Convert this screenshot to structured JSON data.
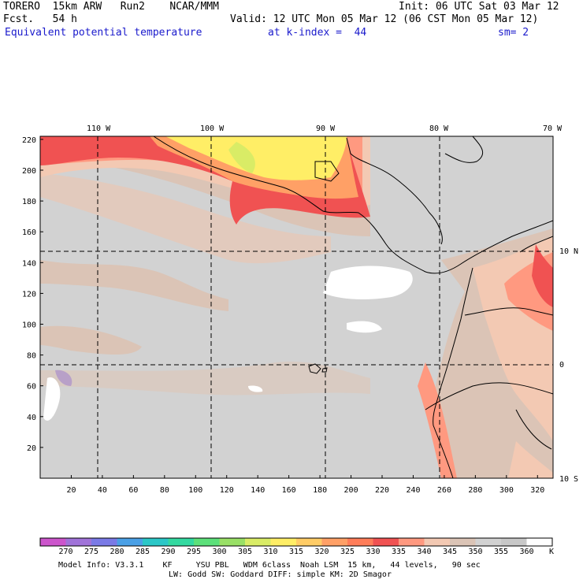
{
  "header": {
    "line1_left": "TORERO  15km ARW   Run2    NCAR/MMM",
    "line1_right": "Init: 06 UTC Sat 03 Mar 12",
    "line2_left": "Fcst.   54 h",
    "line2_right": "Valid: 12 UTC Mon 05 Mar 12 (06 CST Mon 05 Mar 12)",
    "field_name": "Equivalent potential temperature",
    "level": "at k-index =  44",
    "smoothing": "sm= 2"
  },
  "map": {
    "lon_labels": [
      "110 W",
      "100 W",
      "90 W",
      "80 W",
      "70 W"
    ],
    "lat_labels": [
      "10 N",
      "0",
      "10 S"
    ],
    "x_ticks": [
      "20",
      "40",
      "60",
      "80",
      "100",
      "120",
      "140",
      "160",
      "180",
      "200",
      "220",
      "240",
      "260",
      "280",
      "300",
      "320"
    ],
    "y_ticks": [
      "20",
      "40",
      "60",
      "80",
      "100",
      "120",
      "140",
      "160",
      "180",
      "200",
      "220"
    ]
  },
  "colorbar": {
    "labels": [
      "270",
      "275",
      "280",
      "285",
      "290",
      "295",
      "300",
      "305",
      "310",
      "315",
      "320",
      "325",
      "330",
      "335",
      "340",
      "345",
      "350",
      "355",
      "360"
    ],
    "unit": "K",
    "colors": [
      "#cc55cc",
      "#a073d9",
      "#7a7ae6",
      "#4aa0e6",
      "#2bc7c7",
      "#33d9a0",
      "#5ce07a",
      "#99e066",
      "#d9ec66",
      "#ffee66",
      "#ffcc66",
      "#ffa066",
      "#ff7d59",
      "#f05252",
      "#ff9980",
      "#f3c9b3",
      "#dbc4b6",
      "#d2d2d2",
      "#c8c8c8",
      "#ffffff"
    ]
  },
  "footer": {
    "line1": "Model Info: V3.3.1    KF     YSU PBL   WDM 6class  Noah LSM  15 km,   44 levels,   90 sec",
    "line2": "LW: Godd SW: Goddard DIFF: simple KM: 2D Smagor"
  }
}
